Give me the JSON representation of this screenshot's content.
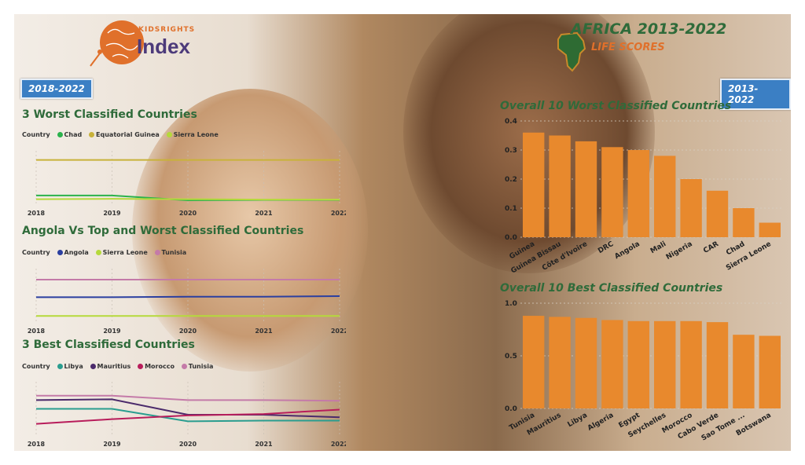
{
  "header": {
    "logo_top": "KIDSRIGHTS",
    "logo_bottom": "Index",
    "title": "AFRICA 2013-2022",
    "subtitle": "LIFE SCORES"
  },
  "badges": {
    "left": "2018-2022",
    "right": "2013-2022"
  },
  "legend_label": "Country",
  "colors": {
    "bar": "#e8892d",
    "title_green": "#2f6b3a",
    "badge_blue": "#3b7fc4"
  },
  "chart_data": [
    {
      "id": "worst3",
      "type": "line",
      "title": "3 Worst Classified Countries",
      "x": [
        "2018",
        "2019",
        "2020",
        "2021",
        "2022"
      ],
      "ylim": [
        0.15,
        0.3
      ],
      "series": [
        {
          "name": "Chad",
          "color": "#2bb24c",
          "values": [
            0.178,
            0.178,
            0.165,
            0.166,
            0.166
          ]
        },
        {
          "name": "Equatorial Guinea",
          "color": "#c8b23a",
          "values": [
            0.275,
            0.275,
            0.275,
            0.275,
            0.275
          ]
        },
        {
          "name": "Sierra Leone",
          "color": "#b5d93b",
          "values": [
            0.168,
            0.169,
            0.168,
            0.167,
            0.167
          ]
        }
      ]
    },
    {
      "id": "angola",
      "type": "line",
      "title": "Angola Vs Top and Worst Classified Countries",
      "x": [
        "2018",
        "2019",
        "2020",
        "2021",
        "2022"
      ],
      "ylim": [
        0,
        1
      ],
      "series": [
        {
          "name": "Angola",
          "color": "#2b3fa0",
          "values": [
            0.48,
            0.48,
            0.49,
            0.49,
            0.5
          ]
        },
        {
          "name": "Sierra Leone",
          "color": "#b5d93b",
          "values": [
            0.14,
            0.14,
            0.14,
            0.14,
            0.14
          ]
        },
        {
          "name": "Tunisia",
          "color": "#c47aa8",
          "values": [
            0.8,
            0.8,
            0.8,
            0.8,
            0.8
          ]
        }
      ]
    },
    {
      "id": "best3",
      "type": "line",
      "title": "3 Best Classifiesd Countries",
      "x": [
        "2018",
        "2019",
        "2020",
        "2021",
        "2022"
      ],
      "ylim": [
        0.8,
        0.95
      ],
      "series": [
        {
          "name": "Libya",
          "color": "#2a9d8f",
          "values": [
            0.876,
            0.876,
            0.842,
            0.844,
            0.844
          ]
        },
        {
          "name": "Mauritius",
          "color": "#4b2a6b",
          "values": [
            0.9,
            0.902,
            0.86,
            0.86,
            0.853
          ]
        },
        {
          "name": "Morocco",
          "color": "#b81d5b",
          "values": [
            0.835,
            0.848,
            0.858,
            0.862,
            0.874
          ]
        },
        {
          "name": "Tunisia",
          "color": "#c47aa8",
          "values": [
            0.912,
            0.912,
            0.9,
            0.9,
            0.898
          ]
        }
      ]
    },
    {
      "id": "worst10",
      "type": "bar",
      "title": "Overall 10 Worst Classified Countries",
      "categories": [
        "Guinea",
        "Guinea Bissau",
        "Côte d'Ivoire",
        "DRC",
        "Angola",
        "Mali",
        "Nigeria",
        "CAR",
        "Chad",
        "Sierra Leone"
      ],
      "values": [
        0.36,
        0.35,
        0.33,
        0.31,
        0.3,
        0.28,
        0.2,
        0.16,
        0.1,
        0.05
      ],
      "yticks": [
        "0.0",
        "0.1",
        "0.2",
        "0.3",
        "0.4"
      ],
      "ylim": [
        0,
        0.4
      ]
    },
    {
      "id": "best10",
      "type": "bar",
      "title": "Overall 10 Best Classified Countries",
      "categories": [
        "Tunisia",
        "Mauritius",
        "Libya",
        "Algeria",
        "Egypt",
        "Seychelles",
        "Morocco",
        "Cabo Verde",
        "Sao Tome ...",
        "Botswana"
      ],
      "values": [
        0.88,
        0.87,
        0.86,
        0.84,
        0.83,
        0.83,
        0.83,
        0.82,
        0.7,
        0.69
      ],
      "yticks": [
        "0.0",
        "0.5",
        "1.0"
      ],
      "ylim": [
        0,
        1
      ]
    }
  ]
}
